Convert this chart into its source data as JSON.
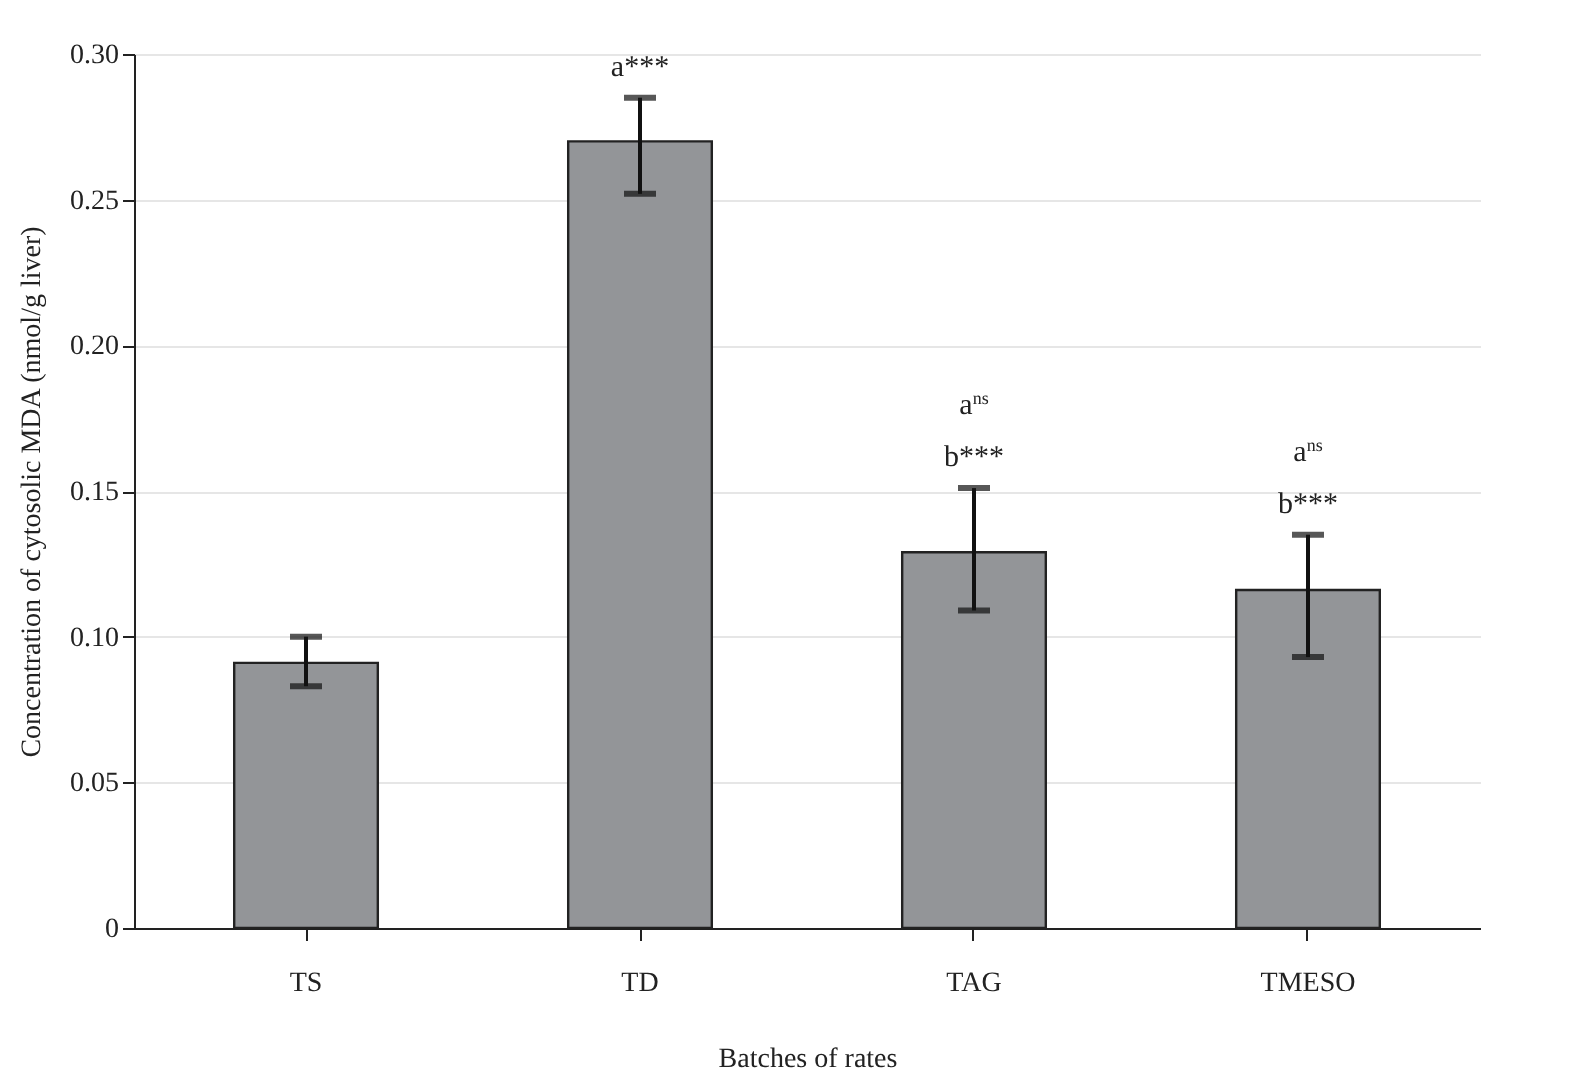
{
  "chart_data": {
    "type": "bar",
    "xlabel": "Batches of rates",
    "ylabel": "Concentration of cytosolic MDA (nmol/g liver)",
    "categories": [
      "TS",
      "TD",
      "TAG",
      "TMESO"
    ],
    "values": [
      0.091,
      0.27,
      0.129,
      0.116
    ],
    "errors": [
      [
        0.083,
        0.1
      ],
      [
        0.252,
        0.285
      ],
      [
        0.109,
        0.151
      ],
      [
        0.093,
        0.135
      ]
    ],
    "color": "#939598",
    "ylim": [
      0,
      0.3
    ],
    "yticks": [
      0,
      0.05,
      {
        "value": 0.1,
        "label": "0.10"
      },
      0.15,
      {
        "value": 0.2,
        "label": "0.20"
      },
      0.25,
      {
        "value": 0.3,
        "label": "0.30"
      }
    ],
    "grid": "y",
    "annotations": [
      {
        "text": "a***",
        "x": "TD",
        "y": 0.285
      },
      {
        "text": "a$^{ns}$",
        "x": "TAG",
        "y": 0.151
      },
      {
        "text": "b***",
        "x": "TAG",
        "y": 0.151
      },
      {
        "text": "a$^{ns}$",
        "x": "TMESO",
        "y": 0.135
      },
      {
        "text": "b***",
        "x": "TMESO",
        "y": 0.135
      }
    ]
  }
}
